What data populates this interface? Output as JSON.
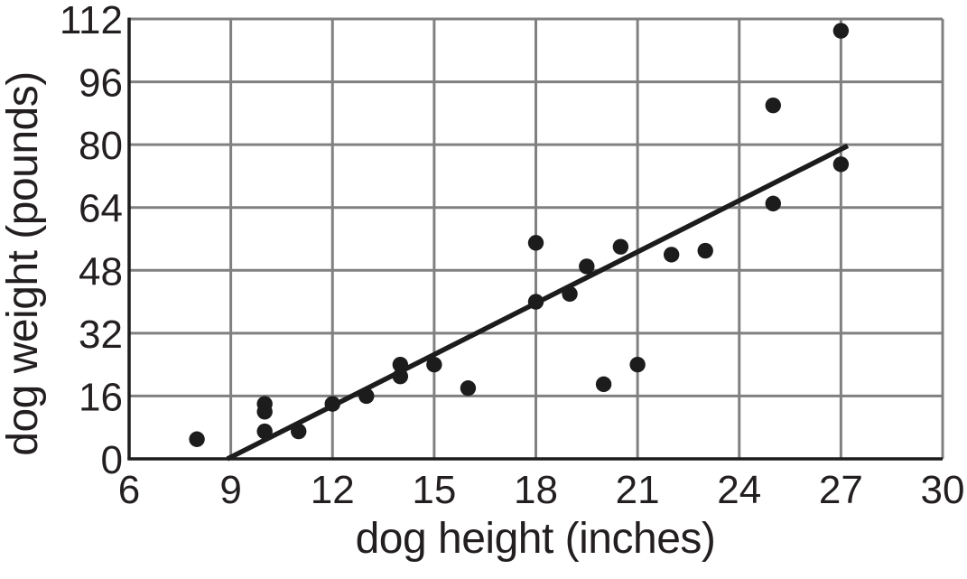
{
  "figure": {
    "background": "#ffffff"
  },
  "chart_data": {
    "type": "scatter",
    "title": "",
    "xlabel": "dog height (inches)",
    "ylabel": "dog weight (pounds)",
    "xlim": [
      6,
      30
    ],
    "ylim": [
      0,
      112
    ],
    "xticks": [
      6,
      9,
      12,
      15,
      18,
      21,
      24,
      27,
      30
    ],
    "yticks": [
      0,
      16,
      32,
      48,
      64,
      80,
      96,
      112
    ],
    "grid": true,
    "legend": false,
    "points": [
      [
        8,
        5
      ],
      [
        10,
        7
      ],
      [
        10,
        12
      ],
      [
        10,
        14
      ],
      [
        11,
        7
      ],
      [
        12,
        14
      ],
      [
        13,
        16
      ],
      [
        14,
        21
      ],
      [
        14,
        24
      ],
      [
        15,
        24
      ],
      [
        16,
        18
      ],
      [
        18,
        40
      ],
      [
        18,
        55
      ],
      [
        19,
        42
      ],
      [
        19.5,
        49
      ],
      [
        20,
        19
      ],
      [
        20.5,
        54
      ],
      [
        21,
        24
      ],
      [
        22,
        52
      ],
      [
        23,
        53
      ],
      [
        25,
        65
      ],
      [
        25,
        90
      ],
      [
        27,
        75
      ],
      [
        27,
        109
      ]
    ],
    "trend_line": {
      "x1": 8.9,
      "y1": 0,
      "x2": 27.2,
      "y2": 79.7
    },
    "colors": {
      "point": "#1c1c1c",
      "trend": "#1c1c1c",
      "grid": "#808080",
      "axis": "#1c1c1c",
      "text": "#231f20"
    }
  }
}
